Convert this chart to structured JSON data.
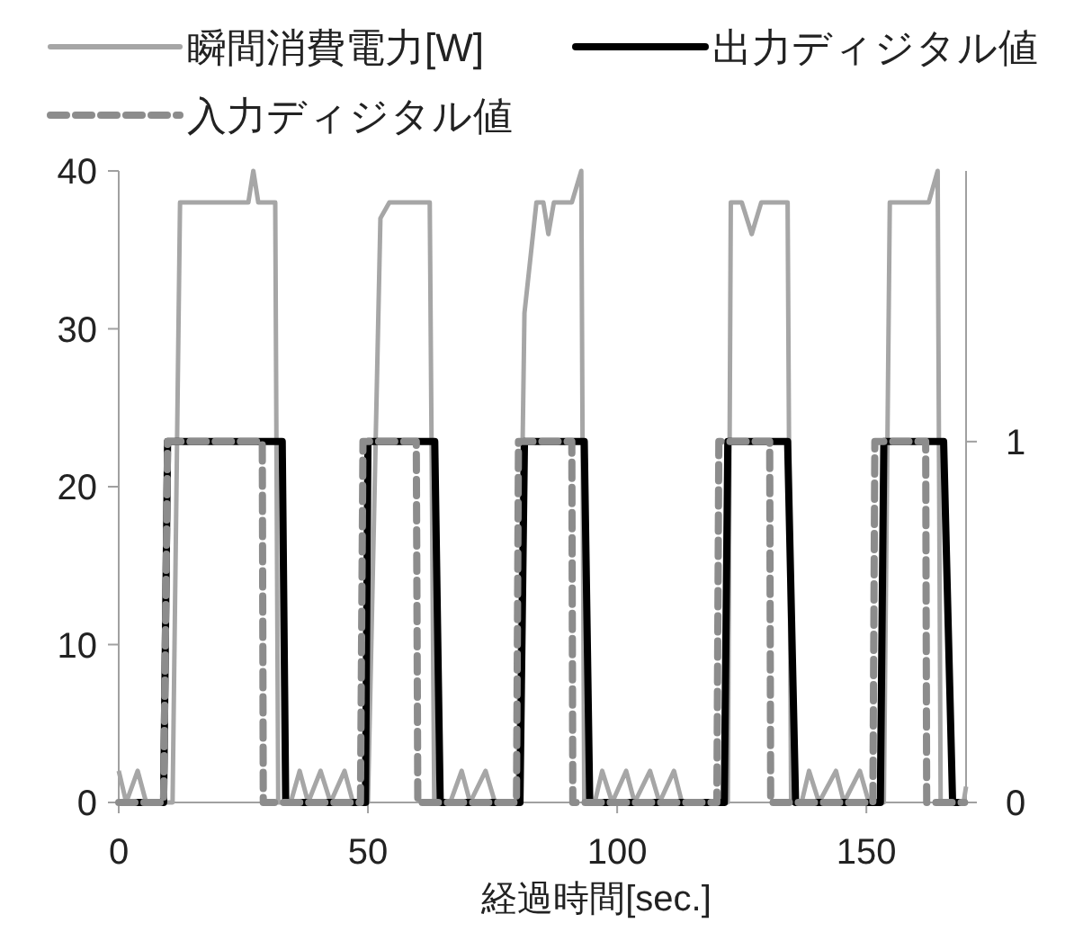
{
  "chart_data": {
    "type": "line",
    "xlabel": "経過時間[sec.]",
    "xlim": [
      0,
      170
    ],
    "xticks": [
      0,
      50,
      100,
      150
    ],
    "ylim": [
      0,
      40
    ],
    "yticks": [
      0,
      10,
      20,
      30,
      40
    ],
    "y2lim": [
      0,
      1.75
    ],
    "y2ticks": [
      0,
      1
    ],
    "legend": "top",
    "series": [
      {
        "name": "瞬間消費電力[W]",
        "color": "#a6a6a6",
        "line_style": "solid",
        "x": [
          0,
          1.5,
          3.8,
          5.5,
          10.8,
          12.3,
          26,
          27,
          28,
          31.4,
          32,
          34.5,
          36.3,
          38,
          40.5,
          42.5,
          45.3,
          47,
          50,
          52.5,
          54.3,
          62.4,
          63.3,
          66.5,
          68.8,
          70.5,
          73.6,
          75.5,
          80,
          81.4,
          83.8,
          85.2,
          86.2,
          87.3,
          90.9,
          92.8,
          93.4,
          95.5,
          97,
          99,
          101.8,
          103.5,
          106.6,
          108.5,
          111.4,
          113,
          122.2,
          122.8,
          125,
          127,
          128.9,
          134.2,
          134.9,
          137,
          138.5,
          140.5,
          143.9,
          145.5,
          148.7,
          150.5,
          153.5,
          154.7,
          162.5,
          164.3,
          164.9,
          169.5,
          170
        ],
        "values": [
          2,
          0,
          2,
          0,
          0,
          38,
          38,
          40,
          38,
          38,
          0,
          0,
          2,
          0,
          2,
          0,
          2,
          0,
          0,
          37,
          38,
          38,
          0,
          0,
          2,
          0,
          2,
          0,
          0,
          31,
          38,
          38,
          36,
          38,
          38,
          40,
          0,
          0,
          2,
          0,
          2,
          0,
          2,
          0,
          2,
          0,
          0,
          38,
          38,
          36,
          38,
          38,
          0,
          0,
          2,
          0,
          2,
          0,
          2,
          0,
          0,
          38,
          38,
          40,
          0,
          0,
          1
        ]
      },
      {
        "name": "出力ディジタル値",
        "color": "#000000",
        "line_style": "solid",
        "axis": "y2",
        "x": [
          0,
          9,
          9.8,
          32.8,
          33.5,
          49.5,
          50,
          63.4,
          64.5,
          80.5,
          81.4,
          93.4,
          94.5,
          121.5,
          122.2,
          134.2,
          135.8,
          152.8,
          153.5,
          165.5,
          167.3,
          169.7
        ],
        "values": [
          0,
          0,
          1,
          1,
          0,
          0,
          1,
          1,
          0,
          0,
          1,
          1,
          0,
          0,
          1,
          1,
          0,
          0,
          1,
          1,
          0,
          0
        ]
      },
      {
        "name": "入力ディジタル値",
        "color": "#8c8c8c",
        "line_style": "dashed",
        "axis": "y2",
        "x": [
          0,
          9,
          9.8,
          28.8,
          29,
          48.5,
          49,
          59.7,
          60,
          79.8,
          80.2,
          90.9,
          91.1,
          120,
          120.4,
          130.6,
          130.8,
          151.3,
          151.7,
          161.9,
          162.1,
          169.7
        ],
        "values": [
          0,
          0,
          1,
          1,
          0,
          0,
          1,
          1,
          0,
          0,
          1,
          1,
          0,
          0,
          1,
          1,
          0,
          0,
          1,
          1,
          0,
          0
        ]
      }
    ]
  }
}
